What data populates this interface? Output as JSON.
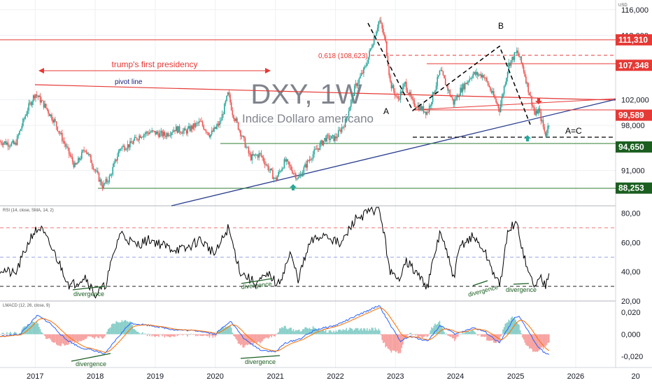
{
  "currency_label": "USD",
  "title": "DXY, 1W",
  "subtitle": "Indice Dollaro americano",
  "colors": {
    "grid": "#eef0f4",
    "axis_text": "#131722",
    "up": "#26a69a",
    "down": "#ef5350",
    "red_line": "#e53935",
    "green_line": "#2e7d32",
    "blue_line": "#2a3e8f",
    "rsi_line": "#000000",
    "macd_line": "#2962ff",
    "signal_line": "#ff6d00",
    "annotation_red": "#e53935",
    "annotation_blue": "#1a237e",
    "annotation_green": "#1b5e20"
  },
  "chart_data": [
    {
      "type": "candlestick",
      "name": "price",
      "x_range": [
        "2016-06",
        "2026-09"
      ],
      "ylim": [
        85.5,
        117.5
      ],
      "y_ticks": [
        {
          "v": 116,
          "label": "116,000"
        },
        {
          "v": 112,
          "label": "112,000"
        },
        {
          "v": 102,
          "label": "102,000"
        },
        {
          "v": 98,
          "label": "98,000"
        },
        {
          "v": 91,
          "label": "91,000"
        }
      ],
      "x_ticks": [
        {
          "d": "2017-01-01",
          "label": "2017"
        },
        {
          "d": "2018-01-01",
          "label": "2018"
        },
        {
          "d": "2019-01-01",
          "label": "2019"
        },
        {
          "d": "2020-01-01",
          "label": "2020"
        },
        {
          "d": "2021-01-01",
          "label": "2021"
        },
        {
          "d": "2022-01-01",
          "label": "2022"
        },
        {
          "d": "2023-01-01",
          "label": "2023"
        },
        {
          "d": "2024-01-01",
          "label": "2024"
        },
        {
          "d": "2025-01-01",
          "label": "2025"
        },
        {
          "d": "2026-01-01",
          "label": "2026"
        },
        {
          "d": "2027-01-01",
          "label": "20"
        }
      ],
      "price_path": [
        [
          "2016-06-01",
          95.5
        ],
        [
          "2016-09-01",
          95.0
        ],
        [
          "2016-11-15",
          100.5
        ],
        [
          "2017-01-01",
          103.0
        ],
        [
          "2017-03-01",
          101.0
        ],
        [
          "2017-05-01",
          98.5
        ],
        [
          "2017-07-01",
          95.0
        ],
        [
          "2017-09-01",
          91.5
        ],
        [
          "2017-11-01",
          94.5
        ],
        [
          "2018-01-01",
          91.0
        ],
        [
          "2018-02-15",
          88.5
        ],
        [
          "2018-04-01",
          90.0
        ],
        [
          "2018-06-01",
          94.5
        ],
        [
          "2018-08-01",
          95.0
        ],
        [
          "2018-10-01",
          96.5
        ],
        [
          "2018-12-01",
          97.0
        ],
        [
          "2019-03-01",
          96.5
        ],
        [
          "2019-05-01",
          97.5
        ],
        [
          "2019-07-01",
          97.0
        ],
        [
          "2019-10-01",
          98.5
        ],
        [
          "2019-12-01",
          96.5
        ],
        [
          "2020-02-01",
          98.5
        ],
        [
          "2020-03-20",
          103.0
        ],
        [
          "2020-04-15",
          100.0
        ],
        [
          "2020-06-01",
          97.0
        ],
        [
          "2020-08-01",
          93.0
        ],
        [
          "2020-10-01",
          93.5
        ],
        [
          "2021-01-01",
          89.5
        ],
        [
          "2021-03-01",
          92.5
        ],
        [
          "2021-05-20",
          89.7
        ],
        [
          "2021-08-01",
          93.0
        ],
        [
          "2021-11-01",
          96.0
        ],
        [
          "2022-01-01",
          96.0
        ],
        [
          "2022-03-01",
          98.5
        ],
        [
          "2022-05-01",
          104.0
        ],
        [
          "2022-07-01",
          107.0
        ],
        [
          "2022-09-25",
          114.5
        ],
        [
          "2022-11-01",
          111.0
        ],
        [
          "2022-12-01",
          104.5
        ],
        [
          "2023-01-15",
          102.0
        ],
        [
          "2023-03-01",
          104.5
        ],
        [
          "2023-04-15",
          101.5
        ],
        [
          "2023-07-15",
          100.0
        ],
        [
          "2023-10-01",
          106.5
        ],
        [
          "2023-12-20",
          101.5
        ],
        [
          "2024-02-01",
          103.5
        ],
        [
          "2024-04-15",
          106.0
        ],
        [
          "2024-06-20",
          105.8
        ],
        [
          "2024-09-25",
          100.5
        ],
        [
          "2024-11-20",
          107.5
        ],
        [
          "2025-01-10",
          109.5
        ],
        [
          "2025-02-15",
          107.0
        ],
        [
          "2025-03-15",
          104.0
        ],
        [
          "2025-05-01",
          99.5
        ],
        [
          "2025-05-20",
          100.5
        ],
        [
          "2025-07-01",
          96.5
        ],
        [
          "2025-07-25",
          98.5
        ]
      ],
      "levels": [
        {
          "label": "111,310",
          "v": 111.31,
          "color": "#e53935"
        },
        {
          "label": "107,348",
          "v": 107.348,
          "color": "#e53935"
        },
        {
          "label": "99,589",
          "v": 99.589,
          "color": "#e53935"
        },
        {
          "label": "94,650",
          "v": 94.65,
          "color": "#1b5e20"
        },
        {
          "label": "88,253",
          "v": 88.253,
          "color": "#1b5e20"
        }
      ],
      "annotations": {
        "presidency": "trump's first presidency",
        "pivot_line": "pivot line",
        "fib": "0,618 (108,623)",
        "wave_a": "A",
        "wave_b": "B",
        "wave_ac": "A=C"
      }
    },
    {
      "type": "line",
      "name": "rsi",
      "header": "RSI (14, close, SMA, 14, 2)",
      "ylim": [
        20,
        85
      ],
      "y_ticks": [
        {
          "v": 80,
          "label": "80,00"
        },
        {
          "v": 60,
          "label": "60,00"
        },
        {
          "v": 40,
          "label": "40,00"
        },
        {
          "v": 20,
          "label": "20,00"
        }
      ],
      "bands": [
        70,
        50,
        30
      ],
      "path": [
        [
          "2016-06-01",
          42
        ],
        [
          "2016-09-01",
          38
        ],
        [
          "2016-12-15",
          66
        ],
        [
          "2017-02-01",
          70
        ],
        [
          "2017-05-01",
          52
        ],
        [
          "2017-08-01",
          30
        ],
        [
          "2017-11-01",
          37
        ],
        [
          "2018-01-01",
          24
        ],
        [
          "2018-03-01",
          30
        ],
        [
          "2018-06-01",
          67
        ],
        [
          "2018-09-01",
          58
        ],
        [
          "2018-12-01",
          62
        ],
        [
          "2019-04-01",
          56
        ],
        [
          "2019-07-01",
          55
        ],
        [
          "2019-10-01",
          62
        ],
        [
          "2020-01-01",
          52
        ],
        [
          "2020-03-20",
          70
        ],
        [
          "2020-06-01",
          40
        ],
        [
          "2020-09-01",
          32
        ],
        [
          "2020-12-01",
          38
        ],
        [
          "2021-01-15",
          30
        ],
        [
          "2021-04-01",
          52
        ],
        [
          "2021-05-20",
          35
        ],
        [
          "2021-08-01",
          60
        ],
        [
          "2021-11-01",
          66
        ],
        [
          "2022-02-01",
          58
        ],
        [
          "2022-05-01",
          76
        ],
        [
          "2022-09-25",
          84
        ],
        [
          "2022-12-01",
          40
        ],
        [
          "2023-01-15",
          33
        ],
        [
          "2023-03-01",
          48
        ],
        [
          "2023-05-01",
          40
        ],
        [
          "2023-07-15",
          30
        ],
        [
          "2023-10-01",
          68
        ],
        [
          "2023-12-20",
          36
        ],
        [
          "2024-02-01",
          58
        ],
        [
          "2024-04-15",
          64
        ],
        [
          "2024-06-20",
          55
        ],
        [
          "2024-09-25",
          30
        ],
        [
          "2024-11-20",
          70
        ],
        [
          "2025-01-10",
          72
        ],
        [
          "2025-03-15",
          40
        ],
        [
          "2025-05-01",
          30
        ],
        [
          "2025-06-01",
          36
        ],
        [
          "2025-07-01",
          31
        ],
        [
          "2025-07-25",
          42
        ]
      ],
      "annotation": "divergence"
    },
    {
      "type": "histogram+line",
      "name": "macd",
      "header": "LMACD (12, 26, close, 9)",
      "ylim": [
        -0.03,
        0.03
      ],
      "y_ticks": [
        {
          "v": 0.02,
          "label": "0,020"
        },
        {
          "v": 0,
          "label": "0,000"
        },
        {
          "v": -0.02,
          "label": "-0,020"
        }
      ],
      "path": [
        [
          "2016-06-01",
          -0.002
        ],
        [
          "2016-10-01",
          0.0
        ],
        [
          "2017-01-15",
          0.017
        ],
        [
          "2017-04-01",
          0.01
        ],
        [
          "2017-07-01",
          -0.004
        ],
        [
          "2017-10-01",
          -0.012
        ],
        [
          "2018-01-01",
          -0.015
        ],
        [
          "2018-03-01",
          -0.018
        ],
        [
          "2018-05-01",
          -0.006
        ],
        [
          "2018-08-01",
          0.01
        ],
        [
          "2018-12-01",
          0.008
        ],
        [
          "2019-05-01",
          0.004
        ],
        [
          "2019-10-01",
          0.003
        ],
        [
          "2020-01-01",
          0.0
        ],
        [
          "2020-04-01",
          0.012
        ],
        [
          "2020-07-01",
          -0.005
        ],
        [
          "2020-10-01",
          -0.014
        ],
        [
          "2021-01-01",
          -0.016
        ],
        [
          "2021-03-01",
          -0.008
        ],
        [
          "2021-06-01",
          -0.004
        ],
        [
          "2021-09-01",
          0.004
        ],
        [
          "2022-01-01",
          0.008
        ],
        [
          "2022-05-01",
          0.016
        ],
        [
          "2022-09-25",
          0.026
        ],
        [
          "2022-12-01",
          0.008
        ],
        [
          "2023-02-01",
          -0.006
        ],
        [
          "2023-04-01",
          -0.002
        ],
        [
          "2023-07-15",
          -0.006
        ],
        [
          "2023-10-01",
          0.008
        ],
        [
          "2024-01-01",
          0.0
        ],
        [
          "2024-04-15",
          0.006
        ],
        [
          "2024-07-01",
          0.002
        ],
        [
          "2024-09-25",
          -0.008
        ],
        [
          "2024-12-20",
          0.014
        ],
        [
          "2025-01-20",
          0.016
        ],
        [
          "2025-03-15",
          0.004
        ],
        [
          "2025-05-01",
          -0.008
        ],
        [
          "2025-06-20",
          -0.016
        ],
        [
          "2025-07-25",
          -0.019
        ]
      ],
      "annotation": "divergence"
    }
  ]
}
